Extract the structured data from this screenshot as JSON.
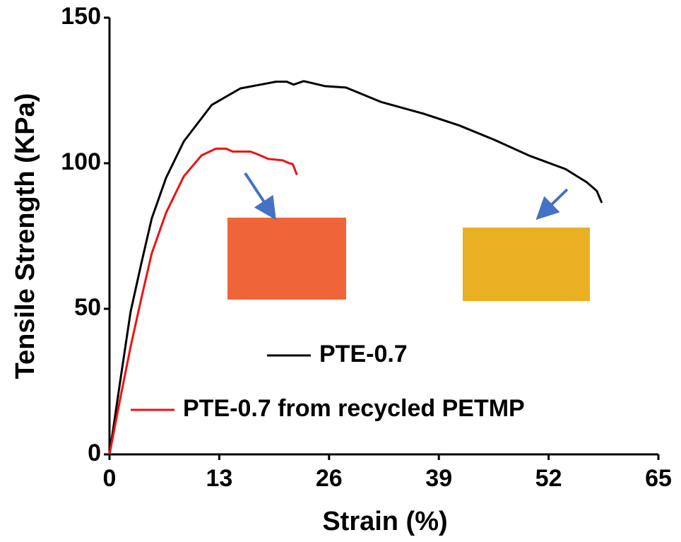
{
  "chart_data": {
    "type": "line",
    "xlabel": "Strain (%)",
    "ylabel": "Tensile Strength (KPa)",
    "xlim": [
      0,
      65
    ],
    "ylim": [
      0,
      150
    ],
    "xticks": [
      0,
      13,
      26,
      39,
      52,
      65
    ],
    "yticks": [
      0,
      50,
      100,
      150
    ],
    "series": [
      {
        "name": "PTE-0.7",
        "color": "#000000",
        "x": [
          0,
          1.26,
          2.5,
          3.8,
          5.0,
          6.7,
          8.8,
          12.1,
          15.5,
          19.7,
          21,
          21.8,
          23,
          25.5,
          28,
          32.2,
          37.2,
          41.4,
          45.6,
          49.8,
          54,
          56.5,
          57.7,
          58.3
        ],
        "values": [
          0,
          25,
          49,
          66,
          81,
          95,
          107.5,
          120,
          125.7,
          128,
          128,
          127,
          128.2,
          126.5,
          126,
          121,
          117,
          113,
          108,
          102.5,
          98,
          93.5,
          90.5,
          86.4
        ]
      },
      {
        "name": "PTE-0.7 from recycled PETMP",
        "color": "#ee1111",
        "x": [
          0,
          1.26,
          2.5,
          3.8,
          5.0,
          6.7,
          8.8,
          10.9,
          12.6,
          13.8,
          14.6,
          16.7,
          17.6,
          18.8,
          20.5,
          21.3,
          21.7,
          22.2
        ],
        "values": [
          0,
          19,
          37,
          54,
          69,
          83,
          95.5,
          102.7,
          105,
          105,
          104,
          104,
          103,
          101.5,
          101,
          100,
          99.7,
          96
        ]
      }
    ]
  }
}
